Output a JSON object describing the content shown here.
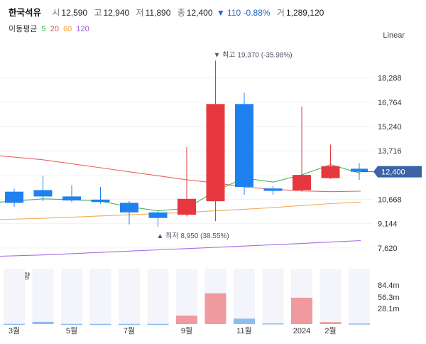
{
  "header": {
    "name": "한국석유",
    "open_label": "시",
    "open": "12,590",
    "high_label": "고",
    "high": "12,940",
    "low_label": "저",
    "low": "11,890",
    "close_label": "종",
    "close": "12,400",
    "change": "▼ 110 -0.88%",
    "volume_label": "거",
    "volume": "1,289,120"
  },
  "moving_average": {
    "label": "이동평균",
    "periods": [
      {
        "label": "5",
        "color": "#2eab4f"
      },
      {
        "label": "20",
        "color": "#e8544d"
      },
      {
        "label": "60",
        "color": "#f0a24a"
      },
      {
        "label": "120",
        "color": "#9b59e0"
      }
    ]
  },
  "scale_mode": "Linear",
  "volume_panel_label": "거래량",
  "chart_data": {
    "type": "candlestick",
    "ylim": [
      6900,
      20500
    ],
    "y_ticks": [
      "18,288",
      "16,764",
      "15,240",
      "13,716",
      "12,192",
      "10,668",
      "9,144",
      "7,620"
    ],
    "current_price_label": "12,400",
    "current_price": 12400,
    "x_tick_labels": [
      "3월",
      "5월",
      "7월",
      "9월",
      "11월",
      "2024",
      "2월"
    ],
    "up_color": "#e6373f",
    "down_color": "#1f80f0",
    "candles": [
      {
        "open": 11150,
        "close": 10450,
        "high": 11350,
        "low": 10200
      },
      {
        "open": 11250,
        "close": 10850,
        "high": 12150,
        "low": 10550
      },
      {
        "open": 10850,
        "close": 10600,
        "high": 11550,
        "low": 10500
      },
      {
        "open": 10650,
        "close": 10500,
        "high": 11450,
        "low": 10400
      },
      {
        "open": 10450,
        "close": 9850,
        "high": 10550,
        "low": 9100
      },
      {
        "open": 9850,
        "close": 9500,
        "high": 9950,
        "low": 8950
      },
      {
        "open": 9700,
        "close": 10700,
        "high": 13950,
        "low": 9600
      },
      {
        "open": 10550,
        "close": 16650,
        "high": 19370,
        "low": 9300
      },
      {
        "open": 16650,
        "close": 11450,
        "high": 17350,
        "low": 10950
      },
      {
        "open": 11350,
        "close": 11200,
        "high": 11500,
        "low": 10950
      },
      {
        "open": 11250,
        "close": 12200,
        "high": 16500,
        "low": 11150
      },
      {
        "open": 12000,
        "close": 12750,
        "high": 14100,
        "low": 11950
      },
      {
        "open": 12590,
        "close": 12400,
        "high": 12940,
        "low": 11890
      }
    ],
    "ma5": [
      10500,
      10700,
      10650,
      10550,
      10200,
      9950,
      10100,
      11200,
      12000,
      11750,
      12200,
      12850,
      12300
    ],
    "ma20": [
      13400,
      13150,
      12900,
      12650,
      12400,
      12150,
      11900,
      11700,
      11450,
      11300,
      11200,
      11150,
      11180
    ],
    "ma60": [
      9400,
      9480,
      9550,
      9630,
      9700,
      9770,
      9850,
      9950,
      10050,
      10150,
      10280,
      10400,
      10500
    ],
    "ma120": [
      7100,
      7180,
      7260,
      7340,
      7420,
      7500,
      7580,
      7660,
      7740,
      7820,
      7900,
      7990,
      8080
    ],
    "annotations": {
      "high": {
        "price": 19370,
        "label": "▼ 최고 19,370 (-35.98%)"
      },
      "low": {
        "price": 8950,
        "label": "▲ 최저 8,950 (38.55%)"
      }
    },
    "volume_ticks": [
      "84.4m",
      "56.3m",
      "28.1m"
    ],
    "volume_max": 100,
    "volumes": [
      0.5,
      4.5,
      0.4,
      0.4,
      0.4,
      0.4,
      17,
      62,
      11,
      1.5,
      53,
      4,
      1.2
    ]
  }
}
